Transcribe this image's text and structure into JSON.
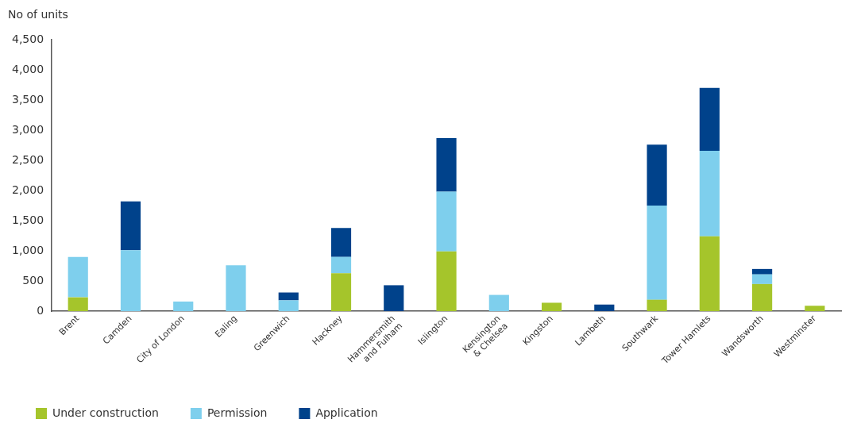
{
  "chart_data": {
    "type": "bar",
    "stacked": true,
    "ylabel": "No of units",
    "categories": [
      "Brent",
      "Camden",
      "City of London",
      "Ealing",
      "Greenwich",
      "Hackney",
      "Hammersmith and Fulham",
      "Islington",
      "Kensington & Chelsea",
      "Kingston",
      "Lambeth",
      "Southwark",
      "Tower Hamlets",
      "Wandsworth",
      "Westminster"
    ],
    "series": [
      {
        "name": "Under construction",
        "color": "#a5c52b",
        "values": [
          230,
          null,
          null,
          null,
          null,
          630,
          null,
          990,
          null,
          140,
          null,
          190,
          1240,
          450,
          90
        ]
      },
      {
        "name": "Permission",
        "color": "#7ecfed",
        "values": [
          670,
          1010,
          160,
          760,
          180,
          270,
          null,
          990,
          270,
          null,
          null,
          1560,
          1420,
          160,
          null
        ]
      },
      {
        "name": "Application",
        "color": "#00428b",
        "values": [
          null,
          810,
          null,
          null,
          130,
          480,
          430,
          890,
          null,
          null,
          110,
          1010,
          1040,
          90,
          null
        ]
      }
    ],
    "ylim": [
      0,
      4500
    ],
    "yticks": [
      0,
      500,
      {
        "value": 1000,
        "label": "1,000"
      },
      {
        "value": 1500,
        "label": "1,500"
      },
      {
        "value": 2000,
        "label": "2,000"
      },
      {
        "value": 2500,
        "label": "2,500"
      },
      {
        "value": 3000,
        "label": "3,000"
      },
      {
        "value": 3500,
        "label": "3,500"
      },
      {
        "value": 4000,
        "label": "4,000"
      },
      {
        "value": 4500,
        "label": "4,500"
      }
    ],
    "grid": false,
    "legend": "bottom left"
  }
}
